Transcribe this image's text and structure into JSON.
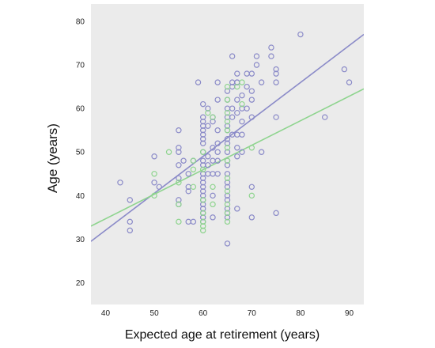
{
  "chart_data": {
    "type": "scatter",
    "title": "",
    "xlabel": "Expected age at retirement (years)",
    "ylabel": "Age (years)",
    "xlim": [
      37,
      93
    ],
    "ylim": [
      15,
      84
    ],
    "xticks": [
      40,
      50,
      60,
      70,
      80,
      90
    ],
    "yticks": [
      20,
      30,
      40,
      50,
      60,
      70,
      80
    ],
    "grid": false,
    "legend": "none",
    "colors": {
      "plot_background": "#ebebeb",
      "series_a": "#8a8ac8",
      "series_b": "#8ed48e"
    },
    "series": [
      {
        "color": "#8a8ac8",
        "points": [
          [
            43,
            43
          ],
          [
            45,
            39
          ],
          [
            45,
            34
          ],
          [
            45,
            32
          ],
          [
            50,
            49
          ],
          [
            50,
            43
          ],
          [
            51,
            42
          ],
          [
            55,
            55
          ],
          [
            55,
            51
          ],
          [
            55,
            50
          ],
          [
            55,
            47
          ],
          [
            55,
            44
          ],
          [
            55,
            39
          ],
          [
            55,
            38
          ],
          [
            56,
            48
          ],
          [
            57,
            45
          ],
          [
            57,
            42
          ],
          [
            57,
            41
          ],
          [
            57,
            34
          ],
          [
            58,
            48
          ],
          [
            58,
            34
          ],
          [
            59,
            66
          ],
          [
            60,
            61
          ],
          [
            60,
            58
          ],
          [
            60,
            57
          ],
          [
            60,
            56
          ],
          [
            60,
            55
          ],
          [
            60,
            54
          ],
          [
            60,
            53
          ],
          [
            60,
            52
          ],
          [
            60,
            50
          ],
          [
            60,
            48
          ],
          [
            60,
            47
          ],
          [
            60,
            45
          ],
          [
            60,
            44
          ],
          [
            60,
            43
          ],
          [
            60,
            42
          ],
          [
            60,
            41
          ],
          [
            60,
            40
          ],
          [
            60,
            39
          ],
          [
            60,
            38
          ],
          [
            60,
            37
          ],
          [
            60,
            36
          ],
          [
            60,
            35
          ],
          [
            60,
            34
          ],
          [
            61,
            60
          ],
          [
            61,
            56
          ],
          [
            61,
            49
          ],
          [
            61,
            47
          ],
          [
            61,
            45
          ],
          [
            62,
            58
          ],
          [
            62,
            57
          ],
          [
            62,
            51
          ],
          [
            62,
            48
          ],
          [
            62,
            45
          ],
          [
            62,
            40
          ],
          [
            62,
            35
          ],
          [
            63,
            66
          ],
          [
            63,
            62
          ],
          [
            63,
            55
          ],
          [
            63,
            52
          ],
          [
            63,
            50
          ],
          [
            63,
            48
          ],
          [
            63,
            45
          ],
          [
            65,
            64
          ],
          [
            65,
            62
          ],
          [
            65,
            60
          ],
          [
            65,
            58
          ],
          [
            65,
            56
          ],
          [
            65,
            55
          ],
          [
            65,
            53
          ],
          [
            65,
            52
          ],
          [
            65,
            50
          ],
          [
            65,
            48
          ],
          [
            65,
            47
          ],
          [
            65,
            45
          ],
          [
            65,
            43
          ],
          [
            65,
            42
          ],
          [
            65,
            40
          ],
          [
            65,
            39
          ],
          [
            65,
            37
          ],
          [
            65,
            36
          ],
          [
            65,
            35
          ],
          [
            65,
            29
          ],
          [
            66,
            72
          ],
          [
            66,
            66
          ],
          [
            66,
            65
          ],
          [
            66,
            60
          ],
          [
            66,
            58
          ],
          [
            66,
            54
          ],
          [
            67,
            68
          ],
          [
            67,
            66
          ],
          [
            67,
            66
          ],
          [
            67,
            62
          ],
          [
            67,
            59
          ],
          [
            67,
            54
          ],
          [
            67,
            51
          ],
          [
            67,
            49
          ],
          [
            67,
            37
          ],
          [
            68,
            63
          ],
          [
            68,
            60
          ],
          [
            68,
            57
          ],
          [
            68,
            54
          ],
          [
            68,
            50
          ],
          [
            69,
            68
          ],
          [
            69,
            65
          ],
          [
            69,
            60
          ],
          [
            70,
            68
          ],
          [
            70,
            64
          ],
          [
            70,
            62
          ],
          [
            70,
            58
          ],
          [
            70,
            42
          ],
          [
            70,
            35
          ],
          [
            71,
            72
          ],
          [
            71,
            70
          ],
          [
            72,
            66
          ],
          [
            72,
            50
          ],
          [
            74,
            74
          ],
          [
            74,
            72
          ],
          [
            75,
            69
          ],
          [
            75,
            68
          ],
          [
            75,
            66
          ],
          [
            75,
            58
          ],
          [
            75,
            36
          ],
          [
            80,
            77
          ],
          [
            85,
            58
          ],
          [
            89,
            69
          ],
          [
            90,
            66
          ]
        ],
        "fit_line": [
          [
            37,
            29.5
          ],
          [
            93,
            77
          ]
        ]
      },
      {
        "color": "#8ed48e",
        "points": [
          [
            50,
            45
          ],
          [
            50,
            40
          ],
          [
            53,
            50
          ],
          [
            55,
            43
          ],
          [
            55,
            38
          ],
          [
            55,
            34
          ],
          [
            58,
            48
          ],
          [
            58,
            46
          ],
          [
            58,
            42
          ],
          [
            60,
            50
          ],
          [
            60,
            46
          ],
          [
            60,
            39
          ],
          [
            60,
            36
          ],
          [
            60,
            34
          ],
          [
            60,
            33
          ],
          [
            60,
            32
          ],
          [
            61,
            59
          ],
          [
            62,
            58
          ],
          [
            62,
            42
          ],
          [
            62,
            38
          ],
          [
            65,
            65
          ],
          [
            65,
            62
          ],
          [
            65,
            59
          ],
          [
            65,
            57
          ],
          [
            65,
            55
          ],
          [
            65,
            51
          ],
          [
            65,
            48
          ],
          [
            65,
            44
          ],
          [
            65,
            41
          ],
          [
            65,
            38
          ],
          [
            65,
            36
          ],
          [
            65,
            34
          ],
          [
            67,
            65
          ],
          [
            68,
            66
          ],
          [
            68,
            61
          ],
          [
            70,
            51
          ],
          [
            70,
            40
          ]
        ],
        "fit_line": [
          [
            37,
            33
          ],
          [
            93,
            64.5
          ]
        ]
      }
    ]
  }
}
